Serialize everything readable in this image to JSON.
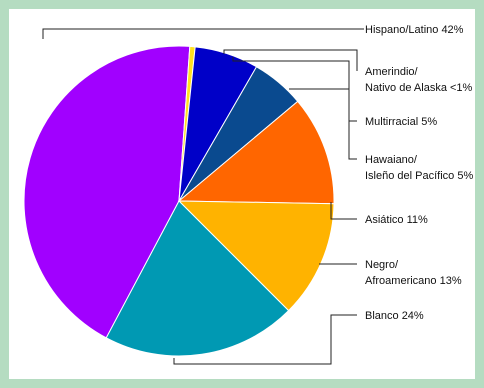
{
  "chart_data": {
    "type": "pie",
    "slices": [
      {
        "key": "hispano",
        "lines": [
          "Hispano/Latino 42%"
        ],
        "value": 42,
        "color": "#a100ff"
      },
      {
        "key": "amerindio",
        "lines": [
          "Amerindio/",
          "Nativo de Alaska <1%"
        ],
        "value": 0.5,
        "color": "#ffe11e"
      },
      {
        "key": "multirracial",
        "lines": [
          "Multirracial 5%"
        ],
        "value": 5,
        "color": "#0000c8"
      },
      {
        "key": "hawaiano",
        "lines": [
          "Hawaiano/",
          "Isleño del Pacífico 5%"
        ],
        "value": 5,
        "color": "#0a4a8f"
      },
      {
        "key": "asiatico",
        "lines": [
          "Asiático 11%"
        ],
        "value": 11,
        "color": "#ff6600"
      },
      {
        "key": "negro",
        "lines": [
          "Negro/",
          "Afroamericano 13%"
        ],
        "value": 13,
        "color": "#ffb300"
      },
      {
        "key": "blanco",
        "lines": [
          "Blanco 24%"
        ],
        "value": 24,
        "color": "#0099b3"
      }
    ]
  }
}
